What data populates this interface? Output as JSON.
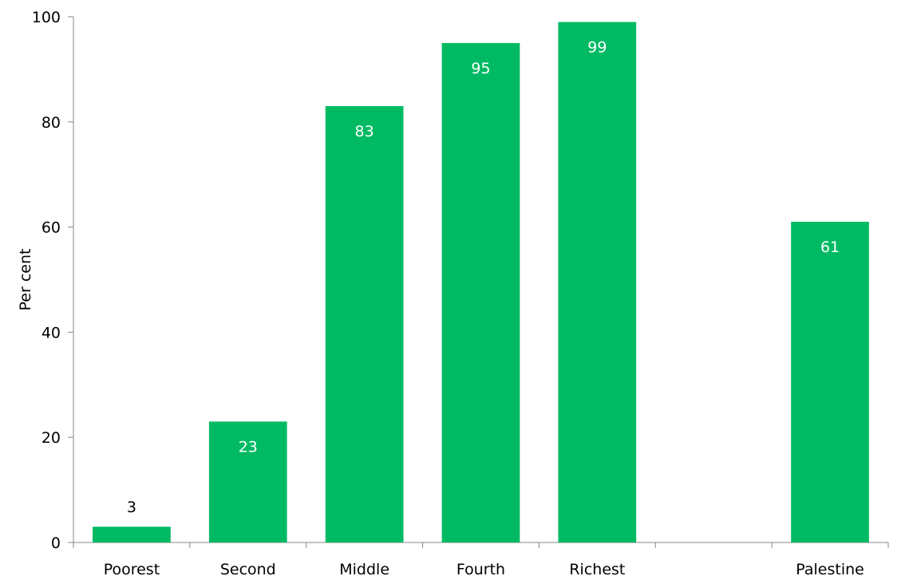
{
  "chart_data": {
    "type": "bar",
    "categories": [
      "Poorest",
      "Second",
      "Middle",
      "Fourth",
      "Richest",
      "",
      "Palestine"
    ],
    "values": [
      3,
      23,
      83,
      95,
      99,
      null,
      61
    ],
    "value_labels": [
      "3",
      "23",
      "83",
      "95",
      "99",
      "",
      "61"
    ],
    "title": "",
    "xlabel": "",
    "ylabel": "Per cent",
    "ylim": [
      0,
      100
    ],
    "yticks": [
      0,
      20,
      40,
      60,
      80,
      100
    ],
    "grid": false,
    "legend": "none",
    "bar_color": "#00BA63",
    "label_color_inside": "#ffffff",
    "label_color_outside": "#000000"
  }
}
